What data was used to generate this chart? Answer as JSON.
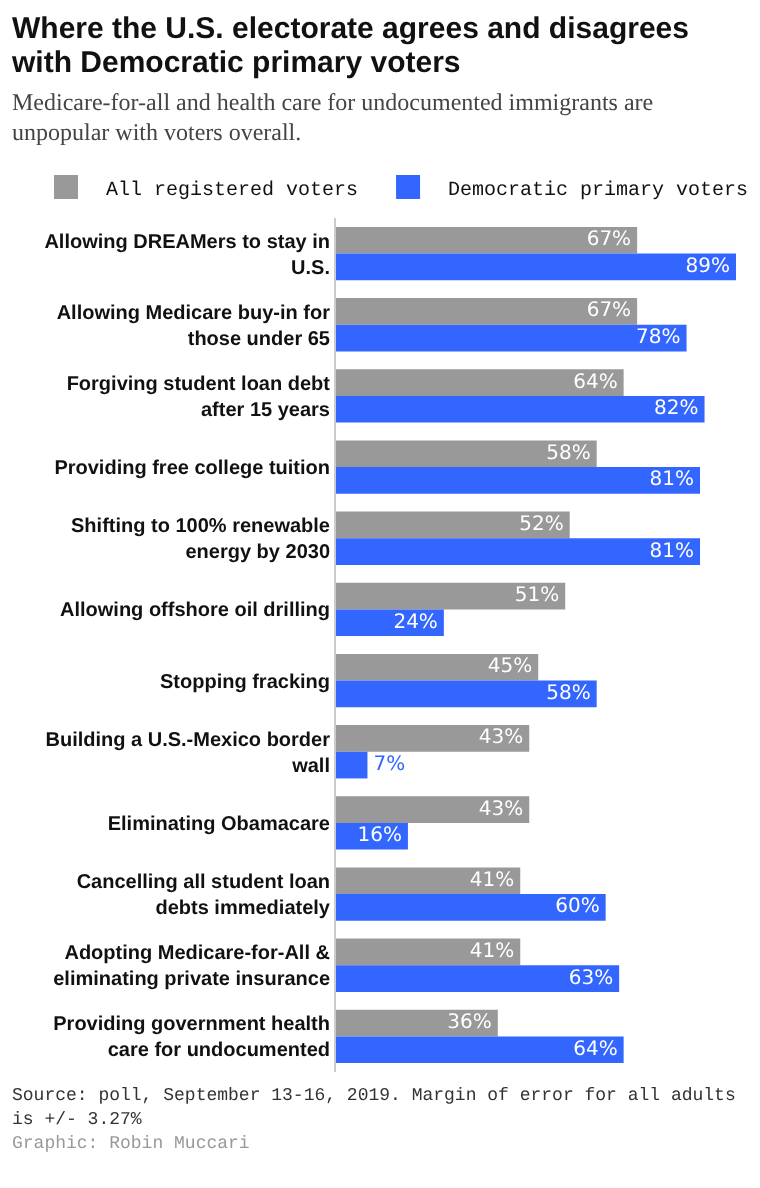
{
  "chart_data": {
    "type": "bar",
    "orientation": "horizontal",
    "title": "Where the U.S. electorate agrees and disagrees with Democratic primary voters",
    "subtitle": "Medicare-for-all and health care for undocumented immigrants are unpopular with voters overall.",
    "categories": [
      "Allowing DREAMers to stay in U.S.",
      "Allowing Medicare buy-in for those under 65",
      "Forgiving student loan debt after 15 years",
      "Providing free college tuition",
      "Shifting to 100% renewable energy by 2030",
      "Allowing offshore oil drilling",
      "Stopping fracking",
      "Building a U.S.-Mexico border wall",
      "Eliminating Obamacare",
      "Cancelling all student loan debts immediately",
      "Adopting Medicare-for-All & eliminating private insurance",
      "Providing government health care for undocumented"
    ],
    "series": [
      {
        "name": "All registered voters",
        "color": "#999999",
        "values": [
          67,
          67,
          64,
          58,
          52,
          51,
          45,
          43,
          43,
          41,
          41,
          36
        ],
        "value_labels": [
          "67%",
          "67%",
          "64%",
          "58%",
          "52%",
          "51%",
          "45%",
          "43%",
          "43%",
          "41%",
          "41%",
          "36%"
        ]
      },
      {
        "name": "Democratic primary voters",
        "color": "#3366ff",
        "values": [
          89,
          78,
          82,
          81,
          81,
          24,
          58,
          7,
          16,
          60,
          63,
          64
        ],
        "value_labels": [
          "89%",
          "78%",
          "82%",
          "81%",
          "81%",
          "24%",
          "58%",
          "7%",
          "16%",
          "60%",
          "63%",
          "64%"
        ]
      }
    ],
    "xlim": [
      0,
      89
    ],
    "tick_labels": "y",
    "grid": false,
    "legend": "top",
    "annotations": [
      "Source: poll, September 13-16, 2019. Margin of error for all adults is +/- 3.27%",
      "Graphic: Robin Muccari"
    ]
  }
}
